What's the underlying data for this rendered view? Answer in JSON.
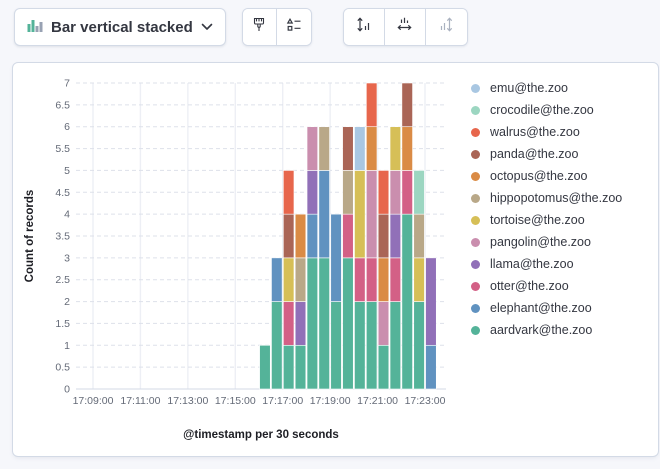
{
  "toolbar": {
    "chart_type_label": "Bar vertical stacked",
    "icons": {
      "chart_type": "bar-chart-icon",
      "dropdown": "chevron-down-icon",
      "style": "paintbrush-icon",
      "legend": "legend-settings-icon",
      "left_axis": "vertical-axis-arrows-icon",
      "bottom_axis": "horizontal-axis-arrows-icon",
      "right_axis": "right-axis-arrows-icon-disabled"
    },
    "chart_type_icon_colors": {
      "green": "#54B399",
      "gray": "#98A2B3"
    }
  },
  "chart_data": {
    "type": "bar",
    "stacked": true,
    "title": "",
    "xlabel": "@timestamp per 30 seconds",
    "ylabel": "Count of records",
    "ylim": [
      0,
      7
    ],
    "yticks": [
      0,
      0.5,
      1,
      1.5,
      2,
      2.5,
      3,
      3.5,
      4,
      4.5,
      5,
      5.5,
      6,
      6.5,
      7
    ],
    "xticks": [
      "17:09:00",
      "17:11:00",
      "17:13:00",
      "17:15:00",
      "17:17:00",
      "17:19:00",
      "17:21:00",
      "17:23:00"
    ],
    "x": [
      "17:16:00",
      "17:16:30",
      "17:17:00",
      "17:17:30",
      "17:18:00",
      "17:18:30",
      "17:19:00",
      "17:19:30",
      "17:20:00",
      "17:20:30",
      "17:21:00",
      "17:21:30",
      "17:22:00",
      "17:22:30",
      "17:23:00"
    ],
    "bucket_seconds": 30,
    "grid": true,
    "legend_position": "right",
    "series": [
      {
        "name": "aardvark@the.zoo",
        "color": "#54B399",
        "values": [
          1,
          2,
          1,
          1,
          3,
          3,
          2,
          3,
          2,
          2,
          1,
          2,
          4,
          2,
          0
        ]
      },
      {
        "name": "elephant@the.zoo",
        "color": "#6092C0",
        "values": [
          0,
          1,
          0,
          0,
          1,
          2,
          2,
          0,
          0,
          0,
          0,
          0,
          0,
          0,
          1
        ]
      },
      {
        "name": "otter@the.zoo",
        "color": "#D36086",
        "values": [
          0,
          0,
          1,
          0,
          0,
          0,
          0,
          1,
          1,
          1,
          0,
          1,
          1,
          0,
          0
        ]
      },
      {
        "name": "llama@the.zoo",
        "color": "#9170B8",
        "values": [
          0,
          0,
          0,
          1,
          1,
          0,
          0,
          0,
          0,
          0,
          0,
          1,
          0,
          0,
          2
        ]
      },
      {
        "name": "pangolin@the.zoo",
        "color": "#CA8EAE",
        "values": [
          0,
          0,
          0,
          0,
          1,
          0,
          0,
          0,
          0,
          2,
          1,
          1,
          0,
          0,
          0
        ]
      },
      {
        "name": "tortoise@the.zoo",
        "color": "#D6BF57",
        "values": [
          0,
          0,
          1,
          0,
          0,
          0,
          0,
          0,
          2,
          0,
          0,
          1,
          0,
          1,
          0
        ]
      },
      {
        "name": "hippopotomus@the.zoo",
        "color": "#B9A888",
        "values": [
          0,
          0,
          0,
          1,
          0,
          1,
          0,
          1,
          0,
          0,
          0,
          0,
          0,
          1,
          0
        ]
      },
      {
        "name": "octopus@the.zoo",
        "color": "#DA8B45",
        "values": [
          0,
          0,
          0,
          1,
          0,
          0,
          0,
          0,
          0,
          1,
          1,
          0,
          1,
          0,
          0
        ]
      },
      {
        "name": "panda@the.zoo",
        "color": "#AA6556",
        "values": [
          0,
          0,
          1,
          0,
          0,
          0,
          0,
          1,
          0,
          0,
          1,
          0,
          1,
          0,
          0
        ]
      },
      {
        "name": "walrus@the.zoo",
        "color": "#E7664C",
        "values": [
          0,
          0,
          1,
          0,
          0,
          0,
          0,
          0,
          0,
          1,
          1,
          0,
          0,
          0,
          0
        ]
      },
      {
        "name": "crocodile@the.zoo",
        "color": "#9CD6C1",
        "values": [
          0,
          0,
          0,
          0,
          0,
          0,
          0,
          0,
          0,
          0,
          0,
          0,
          0,
          1,
          0
        ]
      },
      {
        "name": "emu@the.zoo",
        "color": "#A9C7E2",
        "values": [
          0,
          0,
          0,
          0,
          0,
          0,
          0,
          0,
          1,
          0,
          0,
          0,
          0,
          0,
          0
        ]
      }
    ]
  }
}
